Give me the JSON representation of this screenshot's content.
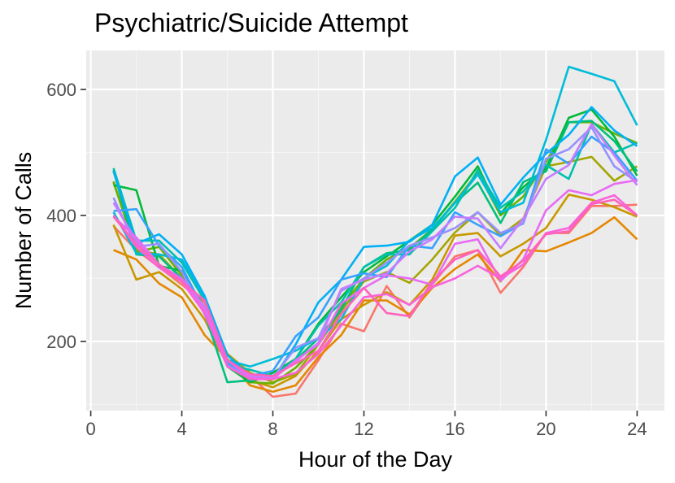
{
  "chart_data": {
    "type": "line",
    "title": "Psychiatric/Suicide Attempt",
    "xlabel": "Hour of the Day",
    "ylabel": "Number of Calls",
    "xlim": [
      -0.2,
      25.2
    ],
    "ylim": [
      90,
      662
    ],
    "xticks": [
      0,
      4,
      8,
      12,
      16,
      20,
      24
    ],
    "yticks": [
      200,
      400,
      600
    ],
    "grid": true,
    "legend": "none",
    "colors": {
      "panel": "#ebebeb",
      "grid_major": "#ffffff",
      "grid_minor": "#f5f5f5",
      "axis_text": "#4d4d4d"
    },
    "x": [
      1,
      2,
      3,
      4,
      5,
      6,
      7,
      8,
      9,
      10,
      11,
      12,
      13,
      14,
      15,
      16,
      17,
      18,
      19,
      20,
      21,
      22,
      23,
      24
    ],
    "series": [
      {
        "color": "#f8766d",
        "values": [
          383,
          345,
          318,
          290,
          262,
          168,
          145,
          112,
          117,
          170,
          228,
          216,
          288,
          238,
          290,
          335,
          345,
          277,
          318,
          372,
          372,
          415,
          415,
          417
        ]
      },
      {
        "color": "#e58700",
        "values": [
          345,
          330,
          292,
          270,
          210,
          172,
          130,
          120,
          130,
          175,
          210,
          265,
          265,
          243,
          285,
          315,
          338,
          295,
          345,
          343,
          357,
          372,
          397,
          362
        ]
      },
      {
        "color": "#c99800",
        "values": [
          385,
          298,
          310,
          283,
          235,
          162,
          138,
          127,
          145,
          185,
          235,
          258,
          278,
          258,
          298,
          368,
          372,
          335,
          355,
          380,
          433,
          425,
          413,
          398
        ]
      },
      {
        "color": "#a3a500",
        "values": [
          452,
          345,
          338,
          300,
          253,
          180,
          150,
          135,
          148,
          195,
          248,
          295,
          310,
          293,
          330,
          373,
          405,
          368,
          395,
          478,
          485,
          493,
          455,
          478
        ]
      },
      {
        "color": "#6bb100",
        "values": [
          454,
          342,
          350,
          305,
          255,
          165,
          135,
          133,
          158,
          195,
          255,
          300,
          330,
          348,
          378,
          422,
          468,
          400,
          430,
          485,
          548,
          548,
          530,
          515
        ]
      },
      {
        "color": "#00ba38",
        "values": [
          448,
          440,
          320,
          312,
          253,
          160,
          135,
          150,
          172,
          228,
          270,
          310,
          335,
          360,
          385,
          430,
          478,
          403,
          445,
          475,
          555,
          568,
          525,
          463
        ]
      },
      {
        "color": "#00bf7d",
        "values": [
          472,
          338,
          335,
          300,
          245,
          135,
          138,
          143,
          170,
          205,
          250,
          318,
          340,
          345,
          378,
          420,
          452,
          388,
          453,
          470,
          548,
          550,
          518,
          470
        ]
      },
      {
        "color": "#00c0af",
        "values": [
          475,
          360,
          360,
          325,
          265,
          162,
          155,
          145,
          172,
          225,
          262,
          318,
          338,
          338,
          375,
          412,
          472,
          412,
          438,
          480,
          458,
          545,
          500,
          515
        ]
      },
      {
        "color": "#00bcd8",
        "values": [
          405,
          340,
          338,
          330,
          270,
          170,
          160,
          172,
          185,
          205,
          235,
          300,
          320,
          360,
          380,
          420,
          465,
          405,
          420,
          520,
          636,
          625,
          613,
          543
        ]
      },
      {
        "color": "#00b0f6",
        "values": [
          470,
          355,
          370,
          338,
          272,
          178,
          145,
          140,
          195,
          262,
          298,
          350,
          352,
          358,
          385,
          462,
          492,
          417,
          460,
          498,
          528,
          572,
          535,
          510
        ]
      },
      {
        "color": "#35a2ff",
        "values": [
          407,
          410,
          352,
          318,
          248,
          165,
          145,
          153,
          208,
          238,
          298,
          308,
          302,
          352,
          348,
          405,
          385,
          367,
          388,
          505,
          482,
          525,
          500,
          455
        ]
      },
      {
        "color": "#9590ff",
        "values": [
          428,
          350,
          355,
          310,
          243,
          162,
          142,
          142,
          190,
          205,
          280,
          300,
          325,
          352,
          365,
          380,
          405,
          372,
          387,
          490,
          505,
          540,
          478,
          453
        ]
      },
      {
        "color": "#c77cff",
        "values": [
          420,
          360,
          322,
          300,
          255,
          170,
          145,
          143,
          168,
          198,
          283,
          298,
          308,
          343,
          362,
          398,
          395,
          348,
          395,
          458,
          480,
          545,
          495,
          448
        ]
      },
      {
        "color": "#e76bf3",
        "values": [
          398,
          365,
          322,
          298,
          250,
          170,
          142,
          140,
          170,
          195,
          260,
          285,
          305,
          300,
          290,
          355,
          362,
          296,
          330,
          408,
          440,
          432,
          450,
          456
        ]
      },
      {
        "color": "#fa62db",
        "values": [
          400,
          350,
          317,
          295,
          245,
          160,
          140,
          140,
          150,
          180,
          225,
          270,
          275,
          258,
          286,
          300,
          320,
          300,
          322,
          372,
          380,
          420,
          432,
          400
        ]
      },
      {
        "color": "#ff62bc",
        "values": [
          398,
          355,
          322,
          295,
          265,
          170,
          148,
          145,
          165,
          185,
          243,
          285,
          245,
          240,
          295,
          330,
          345,
          303,
          328,
          370,
          375,
          418,
          425,
          400
        ]
      }
    ]
  }
}
